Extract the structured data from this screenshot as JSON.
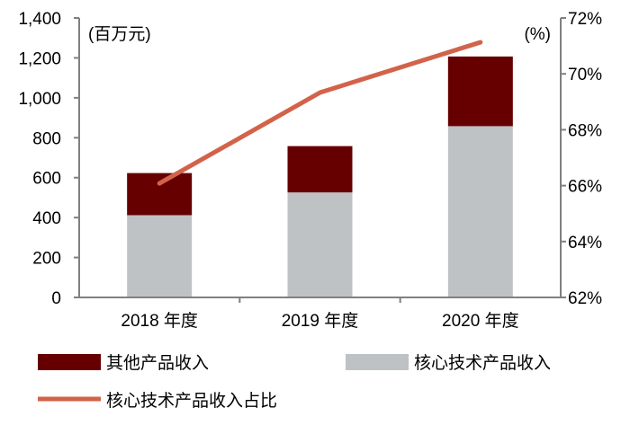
{
  "chart_data": {
    "type": "bar+line",
    "categories": [
      "2018 年度",
      "2019 年度",
      "2020 年度"
    ],
    "left_unit_label": "(百万元)",
    "right_unit_label": "(%)",
    "left_ylim": [
      0,
      1400
    ],
    "left_ticks": [
      "0",
      "200",
      "400",
      "600",
      "800",
      "1,000",
      "1,200",
      "1,400"
    ],
    "right_ylim": [
      62,
      72
    ],
    "right_ticks": [
      "62%",
      "64%",
      "66%",
      "68%",
      "70%",
      "72%"
    ],
    "series": [
      {
        "name": "核心技术产品收入",
        "type": "stacked-bar",
        "axis": "left",
        "color": "#bfc2c4",
        "values": [
          412,
          526,
          858
        ]
      },
      {
        "name": "其他产品收入",
        "type": "stacked-bar",
        "axis": "left",
        "color": "#660000",
        "values": [
          211,
          232,
          349
        ]
      },
      {
        "name": "核心技术产品收入占比",
        "type": "line",
        "axis": "right",
        "color": "#d2634a",
        "values": [
          66.08,
          69.33,
          71.13
        ]
      }
    ],
    "grid": false,
    "legend_position": "bottom"
  }
}
